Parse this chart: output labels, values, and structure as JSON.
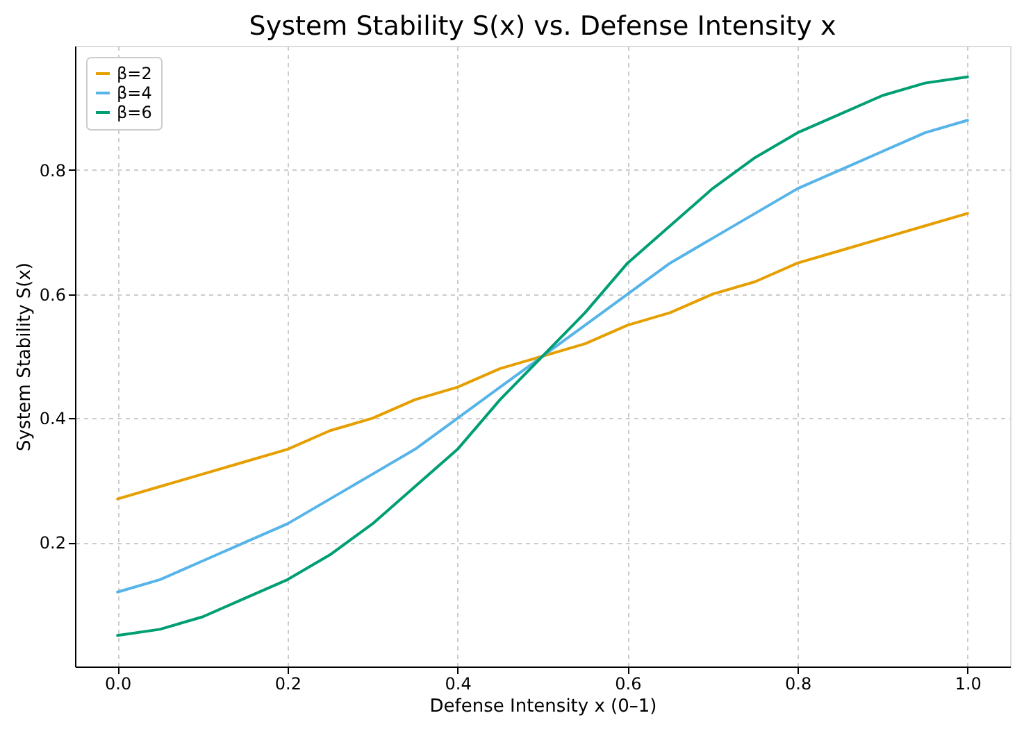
{
  "chart_data": {
    "type": "line",
    "title": "System Stability S(x) vs. Defense Intensity x",
    "xlabel": "Defense Intensity x (0–1)",
    "ylabel": "System Stability S(x)",
    "x": [
      0,
      0.05,
      0.1,
      0.15,
      0.2,
      0.25,
      0.3,
      0.35,
      0.4,
      0.45,
      0.5,
      0.55,
      0.6,
      0.65,
      0.7,
      0.75,
      0.8,
      0.85,
      0.9,
      0.95,
      1.0
    ],
    "series": [
      {
        "name": "β=2",
        "color": "#e69f00",
        "values": [
          0.27,
          0.29,
          0.31,
          0.33,
          0.35,
          0.38,
          0.4,
          0.43,
          0.45,
          0.48,
          0.5,
          0.52,
          0.55,
          0.57,
          0.6,
          0.62,
          0.65,
          0.67,
          0.69,
          0.71,
          0.73
        ]
      },
      {
        "name": "β=4",
        "color": "#56b4e9",
        "values": [
          0.12,
          0.14,
          0.17,
          0.2,
          0.23,
          0.27,
          0.31,
          0.35,
          0.4,
          0.45,
          0.5,
          0.55,
          0.6,
          0.65,
          0.69,
          0.73,
          0.77,
          0.8,
          0.83,
          0.86,
          0.88
        ]
      },
      {
        "name": "β=6",
        "color": "#009e73",
        "values": [
          0.05,
          0.06,
          0.08,
          0.11,
          0.14,
          0.18,
          0.23,
          0.29,
          0.35,
          0.43,
          0.5,
          0.57,
          0.65,
          0.71,
          0.77,
          0.82,
          0.86,
          0.89,
          0.92,
          0.94,
          0.95
        ]
      }
    ],
    "xlim": [
      -0.05,
      1.05
    ],
    "xticks": [
      {
        "value": 0,
        "label": "0.0"
      },
      0.2,
      0.4,
      0.6,
      0.8,
      {
        "value": 1,
        "label": "1.0"
      }
    ],
    "ylim": [
      0.0,
      1.0
    ],
    "yticks": [
      0.2,
      0.4,
      0.6,
      0.8
    ],
    "grid": true,
    "legend": "top left",
    "marker": "none",
    "line_style": "solid"
  }
}
